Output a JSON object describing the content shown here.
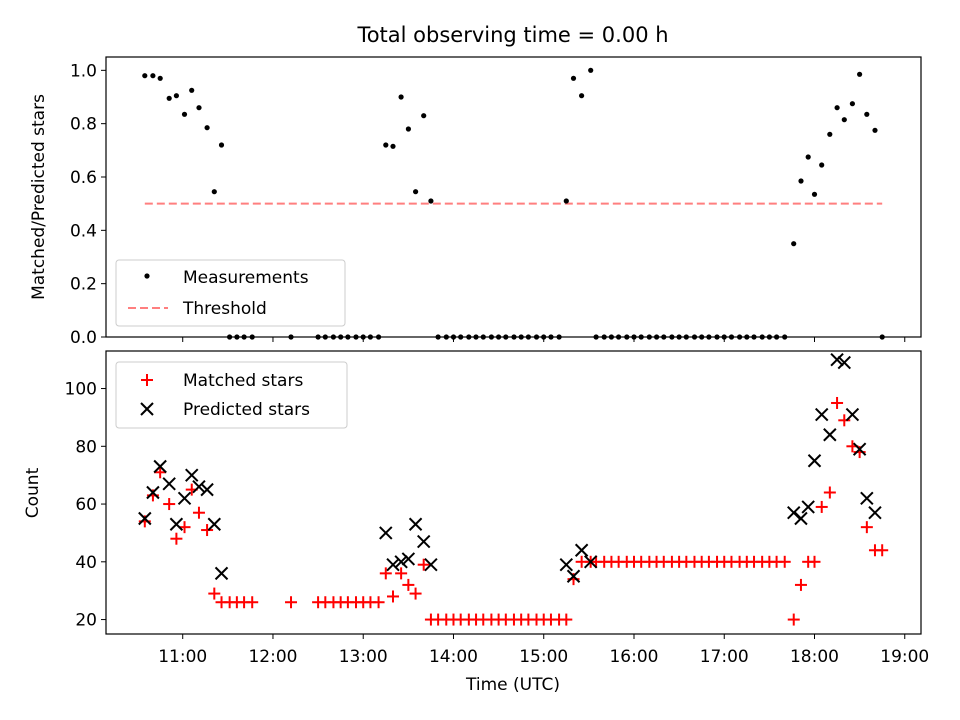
{
  "figure": {
    "title": "Total observing time = 0.00 h"
  },
  "chart_data": [
    {
      "type": "scatter",
      "panel": "top",
      "ylabel": "Matched/Predicted stars",
      "xlim": [
        10.15,
        19.18
      ],
      "ylim": [
        0,
        1.05
      ],
      "yticks": [
        "0.0",
        "0.2",
        "0.4",
        "0.6",
        "0.8",
        "1.0"
      ],
      "grid": false,
      "legend": {
        "placement": "lower-left",
        "entries": [
          "Measurements",
          "Threshold"
        ]
      },
      "series": [
        {
          "name": "Measurements",
          "kind": "scatter",
          "marker": "dot",
          "color": "#000000",
          "x": [
            10.58,
            10.67,
            10.75,
            10.85,
            10.93,
            11.02,
            11.1,
            11.18,
            11.27,
            11.35,
            11.43,
            11.52,
            11.6,
            11.68,
            11.77,
            12.2,
            12.5,
            12.58,
            12.67,
            12.75,
            12.83,
            12.92,
            13.0,
            13.08,
            13.17,
            13.25,
            13.33,
            13.42,
            13.5,
            13.58,
            13.67,
            13.75,
            13.83,
            13.92,
            14.0,
            14.08,
            14.17,
            14.25,
            14.33,
            14.42,
            14.5,
            14.58,
            14.67,
            14.75,
            14.83,
            14.92,
            15.0,
            15.08,
            15.17,
            15.25,
            15.33,
            15.42,
            15.52,
            15.58,
            15.67,
            15.75,
            15.83,
            15.92,
            16.0,
            16.08,
            16.17,
            16.25,
            16.33,
            16.42,
            16.5,
            16.58,
            16.67,
            16.75,
            16.83,
            16.92,
            17.0,
            17.08,
            17.17,
            17.25,
            17.33,
            17.42,
            17.5,
            17.58,
            17.67,
            17.77,
            17.85,
            17.93,
            18.0,
            18.08,
            18.17,
            18.25,
            18.33,
            18.42,
            18.5,
            18.58,
            18.67,
            18.75
          ],
          "y": [
            0.98,
            0.98,
            0.97,
            0.895,
            0.905,
            0.835,
            0.925,
            0.86,
            0.785,
            0.545,
            0.72,
            0,
            0,
            0,
            0,
            0,
            0,
            0,
            0,
            0,
            0,
            0,
            0,
            0,
            0,
            0.72,
            0.715,
            0.9,
            0.78,
            0.545,
            0.83,
            0.51,
            0,
            0,
            0,
            0,
            0,
            0,
            0,
            0,
            0,
            0,
            0,
            0,
            0,
            0,
            0,
            0,
            0,
            0.51,
            0.97,
            0.905,
            1.0,
            0,
            0,
            0,
            0,
            0,
            0,
            0,
            0,
            0,
            0,
            0,
            0,
            0,
            0,
            0,
            0,
            0,
            0,
            0,
            0,
            0,
            0,
            0,
            0,
            0,
            0,
            0.35,
            0.585,
            0.675,
            0.535,
            0.645,
            0.76,
            0.86,
            0.815,
            0.875,
            0.985,
            0.835,
            0.775,
            0.0
          ]
        },
        {
          "name": "Threshold",
          "kind": "line",
          "style": "dashed",
          "color": "#ff7f7f",
          "x": [
            10.58,
            18.75
          ],
          "y": [
            0.5,
            0.5
          ]
        }
      ]
    },
    {
      "type": "scatter",
      "panel": "bottom",
      "xlabel": "Time (UTC)",
      "ylabel": "Count",
      "xlim": [
        10.15,
        19.18
      ],
      "ylim": [
        15,
        113
      ],
      "xticks": [
        "11:00",
        "12:00",
        "13:00",
        "14:00",
        "15:00",
        "16:00",
        "17:00",
        "18:00",
        "19:00"
      ],
      "xtick_values": [
        11,
        12,
        13,
        14,
        15,
        16,
        17,
        18,
        19
      ],
      "yticks": [
        "20",
        "40",
        "60",
        "80",
        "100"
      ],
      "grid": false,
      "legend": {
        "placement": "upper-left",
        "entries": [
          "Matched stars",
          "Predicted stars"
        ]
      },
      "series": [
        {
          "name": "Matched stars",
          "marker": "plus",
          "color": "#ff0000",
          "x": [
            10.58,
            10.67,
            10.75,
            10.85,
            10.93,
            11.02,
            11.1,
            11.18,
            11.27,
            11.35,
            11.43,
            11.52,
            11.6,
            11.68,
            11.77,
            12.2,
            12.5,
            12.58,
            12.67,
            12.75,
            12.83,
            12.92,
            13.0,
            13.08,
            13.17,
            13.25,
            13.33,
            13.42,
            13.5,
            13.58,
            13.67,
            13.75,
            13.83,
            13.92,
            14.0,
            14.08,
            14.17,
            14.25,
            14.33,
            14.42,
            14.5,
            14.58,
            14.67,
            14.75,
            14.83,
            14.92,
            15.0,
            15.08,
            15.17,
            15.25,
            15.33,
            15.42,
            15.52,
            15.58,
            15.67,
            15.75,
            15.83,
            15.92,
            16.0,
            16.08,
            16.17,
            16.25,
            16.33,
            16.42,
            16.5,
            16.58,
            16.67,
            16.75,
            16.83,
            16.92,
            17.0,
            17.08,
            17.17,
            17.25,
            17.33,
            17.42,
            17.5,
            17.58,
            17.67,
            17.77,
            17.85,
            17.93,
            18.0,
            18.08,
            18.17,
            18.25,
            18.33,
            18.42,
            18.5,
            18.58,
            18.67,
            18.75
          ],
          "y": [
            54,
            63,
            71,
            60,
            48,
            52,
            65,
            57,
            51,
            29,
            26,
            26,
            26,
            26,
            26,
            26,
            26,
            26,
            26,
            26,
            26,
            26,
            26,
            26,
            26,
            36,
            28,
            36,
            32,
            29,
            39,
            20,
            20,
            20,
            20,
            20,
            20,
            20,
            20,
            20,
            20,
            20,
            20,
            20,
            20,
            20,
            20,
            20,
            20,
            20,
            34,
            40,
            40,
            40,
            40,
            40,
            40,
            40,
            40,
            40,
            40,
            40,
            40,
            40,
            40,
            40,
            40,
            40,
            40,
            40,
            40,
            40,
            40,
            40,
            40,
            40,
            40,
            40,
            40,
            20,
            32,
            40,
            40,
            59,
            64,
            95,
            89,
            80,
            78,
            52,
            44,
            44
          ]
        },
        {
          "name": "Predicted stars",
          "marker": "x",
          "color": "#000000",
          "x": [
            10.58,
            10.67,
            10.75,
            10.85,
            10.93,
            11.02,
            11.1,
            11.18,
            11.27,
            11.35,
            11.43,
            13.25,
            13.33,
            13.42,
            13.5,
            13.58,
            13.67,
            13.75,
            15.25,
            15.33,
            15.42,
            15.52,
            17.77,
            17.85,
            17.93,
            18.0,
            18.08,
            18.17,
            18.25,
            18.33,
            18.42,
            18.5,
            18.58,
            18.67
          ],
          "y": [
            55,
            64,
            73,
            67,
            53,
            62,
            70,
            66,
            65,
            53,
            36,
            50,
            39,
            40,
            41,
            53,
            47,
            39,
            39,
            35,
            44,
            40,
            57,
            55,
            59,
            75,
            91,
            84,
            110,
            109,
            91,
            79,
            62,
            57
          ]
        }
      ]
    }
  ]
}
